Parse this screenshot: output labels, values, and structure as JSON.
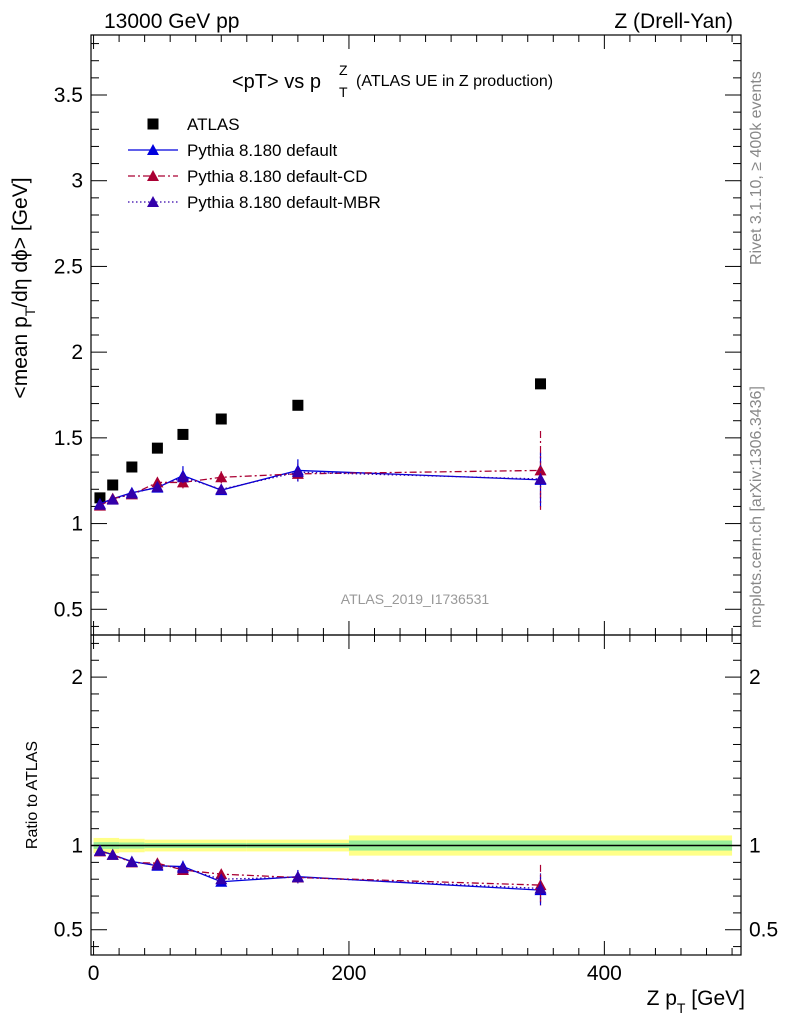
{
  "header": {
    "left": "13000 GeV pp",
    "right": "Z (Drell-Yan)"
  },
  "side_labels": {
    "rivet": "Rivet 3.1.10, ≥ 400k events",
    "mcplots": "mcplots.cern.ch [arXiv:1306.3436]"
  },
  "analysis_id": "ATLAS_2019_I1736531",
  "colors": {
    "atlas": "#000000",
    "default": "#0000dd",
    "cd": "#aa0033",
    "mbr": "#3300aa",
    "band_outer": "#ffff88",
    "band_inner": "#99ee99"
  },
  "chart_data": [
    {
      "type": "scatter",
      "panel": "main",
      "title_main": "<pT> vs p",
      "title_sub": "(ATLAS UE in Z production)",
      "ylabel": "<mean p_T/dη dϕ> [GeV]",
      "xlim": [
        -2,
        507
      ],
      "ylim": [
        0.35,
        3.85
      ],
      "x_ticks": [
        0,
        200,
        400
      ],
      "y_ticks": [
        0.5,
        1,
        1.5,
        2,
        2.5,
        3,
        3.5
      ],
      "y_tick_labels": [
        "0.5",
        "1",
        "1.5",
        "2",
        "2.5",
        "3",
        "3.5"
      ],
      "legend_position": "top-left",
      "series": [
        {
          "name": "ATLAS",
          "marker": "square",
          "x": [
            5,
            15,
            30,
            50,
            70,
            100,
            160,
            350
          ],
          "y": [
            1.15,
            1.225,
            1.33,
            1.44,
            1.52,
            1.61,
            1.69,
            1.815
          ]
        },
        {
          "name": "Pythia 8.180 default",
          "marker": "triangle",
          "line": "solid",
          "x": [
            5,
            15,
            30,
            50,
            70,
            100,
            160,
            350
          ],
          "y": [
            1.115,
            1.145,
            1.18,
            1.21,
            1.28,
            1.195,
            1.31,
            1.255
          ],
          "err": [
            0.015,
            0.015,
            0.02,
            0.025,
            0.055,
            0.025,
            0.065,
            0.16
          ]
        },
        {
          "name": "Pythia 8.180 default-CD",
          "marker": "triangle",
          "line": "dashdot",
          "x": [
            5,
            15,
            30,
            50,
            70,
            100,
            160,
            350
          ],
          "y": [
            1.105,
            1.145,
            1.17,
            1.24,
            1.24,
            1.27,
            1.29,
            1.31
          ],
          "err": [
            0.012,
            0.015,
            0.02,
            0.025,
            0.035,
            0.035,
            0.04,
            0.23
          ]
        },
        {
          "name": "Pythia 8.180 default-MBR",
          "marker": "triangle",
          "line": "dotted",
          "x": [
            5,
            15,
            30,
            50,
            70,
            100,
            160,
            350
          ],
          "y": [
            1.11,
            1.14,
            1.175,
            1.215,
            1.27,
            1.2,
            1.3,
            1.26
          ],
          "err": [
            0.012,
            0.015,
            0.02,
            0.025,
            0.045,
            0.025,
            0.05,
            0.15
          ]
        }
      ]
    },
    {
      "type": "scatter",
      "panel": "ratio",
      "xlabel": "Z p_T [GeV]",
      "ylabel": "Ratio to ATLAS",
      "xlim": [
        -2,
        507
      ],
      "ylim": [
        0.35,
        2.25
      ],
      "x_ticks": [
        0,
        200,
        400
      ],
      "y_ticks": [
        0.5,
        1,
        2
      ],
      "y_tick_labels": [
        "0.5",
        "1",
        "2"
      ],
      "reference_line": 1,
      "band": [
        {
          "x0": 0,
          "x1": 20,
          "outer": 0.045,
          "inner": 0.02
        },
        {
          "x0": 20,
          "x1": 40,
          "outer": 0.04,
          "inner": 0.018
        },
        {
          "x0": 40,
          "x1": 120,
          "outer": 0.035,
          "inner": 0.015
        },
        {
          "x0": 120,
          "x1": 200,
          "outer": 0.035,
          "inner": 0.015
        },
        {
          "x0": 200,
          "x1": 500,
          "outer": 0.06,
          "inner": 0.03
        }
      ],
      "series": [
        {
          "name": "Pythia 8.180 default",
          "x": [
            5,
            15,
            30,
            50,
            70,
            100,
            160,
            350
          ],
          "y": [
            0.97,
            0.945,
            0.905,
            0.88,
            0.875,
            0.785,
            0.815,
            0.735
          ],
          "err": [
            0.01,
            0.012,
            0.015,
            0.02,
            0.035,
            0.02,
            0.04,
            0.09
          ]
        },
        {
          "name": "Pythia 8.180 default-CD",
          "x": [
            5,
            15,
            30,
            50,
            70,
            100,
            160,
            350
          ],
          "y": [
            0.965,
            0.945,
            0.9,
            0.895,
            0.855,
            0.83,
            0.81,
            0.765
          ],
          "err": [
            0.01,
            0.012,
            0.015,
            0.02,
            0.025,
            0.025,
            0.03,
            0.12
          ]
        },
        {
          "name": "Pythia 8.180 default-MBR",
          "x": [
            5,
            15,
            30,
            50,
            70,
            100,
            160,
            350
          ],
          "y": [
            0.968,
            0.945,
            0.902,
            0.885,
            0.865,
            0.8,
            0.812,
            0.745
          ],
          "err": [
            0.01,
            0.012,
            0.015,
            0.02,
            0.03,
            0.02,
            0.035,
            0.09
          ]
        }
      ]
    }
  ]
}
